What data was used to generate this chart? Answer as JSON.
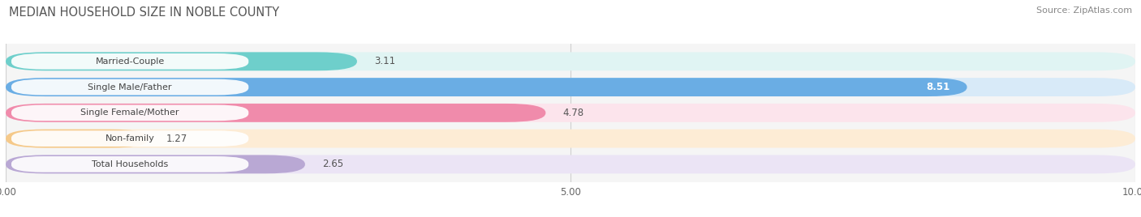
{
  "title": "MEDIAN HOUSEHOLD SIZE IN NOBLE COUNTY",
  "source": "Source: ZipAtlas.com",
  "categories": [
    "Married-Couple",
    "Single Male/Father",
    "Single Female/Mother",
    "Non-family",
    "Total Households"
  ],
  "values": [
    3.11,
    8.51,
    4.78,
    1.27,
    2.65
  ],
  "bar_colors": [
    "#6ecfcb",
    "#6aade4",
    "#f08bab",
    "#f5c98a",
    "#b9a8d4"
  ],
  "bg_colors": [
    "#e0f4f3",
    "#d8eaf8",
    "#fce4ec",
    "#fdecd5",
    "#ebe4f5"
  ],
  "label_inside": [
    false,
    true,
    false,
    false,
    false
  ],
  "xlim": [
    0,
    10
  ],
  "xticks": [
    0.0,
    5.0,
    10.0
  ],
  "xtick_labels": [
    "0.00",
    "5.00",
    "10.00"
  ],
  "title_fontsize": 10.5,
  "source_fontsize": 8,
  "bar_height": 0.72,
  "bar_gap": 0.28,
  "background_color": "#ffffff",
  "plot_bg_color": "#f5f5f5"
}
